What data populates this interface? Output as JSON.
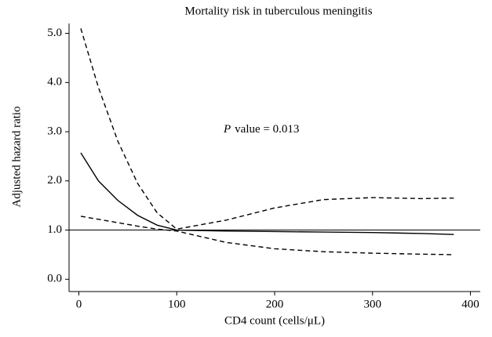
{
  "chart_data": {
    "type": "line",
    "title": "Mortality risk in tuberculous meningitis",
    "xlabel": "CD4 count (cells/μL)",
    "ylabel": "Adjusted hazard ratio",
    "annotation": [
      "P",
      "value = 0.013"
    ],
    "x": [
      2,
      20,
      40,
      60,
      80,
      100,
      150,
      200,
      250,
      300,
      350,
      383
    ],
    "series": [
      {
        "color": "#000000",
        "dash": "solid",
        "values": [
          2.57,
          2.0,
          1.6,
          1.3,
          1.1,
          1.0,
          0.98,
          0.97,
          0.96,
          0.95,
          0.93,
          0.91
        ]
      },
      {
        "color": "#000000",
        "dash": "dashed",
        "values": [
          5.1,
          3.9,
          2.8,
          1.95,
          1.35,
          1.02,
          1.2,
          1.45,
          1.62,
          1.66,
          1.64,
          1.65
        ]
      },
      {
        "color": "#000000",
        "dash": "dashed",
        "values": [
          1.28,
          1.22,
          1.15,
          1.08,
          1.02,
          0.98,
          0.75,
          0.62,
          0.56,
          0.53,
          0.51,
          0.5
        ]
      }
    ],
    "reference_line": 1,
    "xlim": [
      -10,
      410
    ],
    "ylim": [
      -0.25,
      5.2
    ],
    "xticks": [
      0,
      100,
      200,
      300,
      400
    ],
    "yticks": [
      {
        "value": 0,
        "label": "0.0"
      },
      {
        "value": 1,
        "label": "1.0"
      },
      {
        "value": 2,
        "label": "2.0"
      },
      {
        "value": 3,
        "label": "3.0"
      },
      {
        "value": 4,
        "label": "4.0"
      },
      {
        "value": 5,
        "label": "5.0"
      }
    ],
    "grid": false
  }
}
